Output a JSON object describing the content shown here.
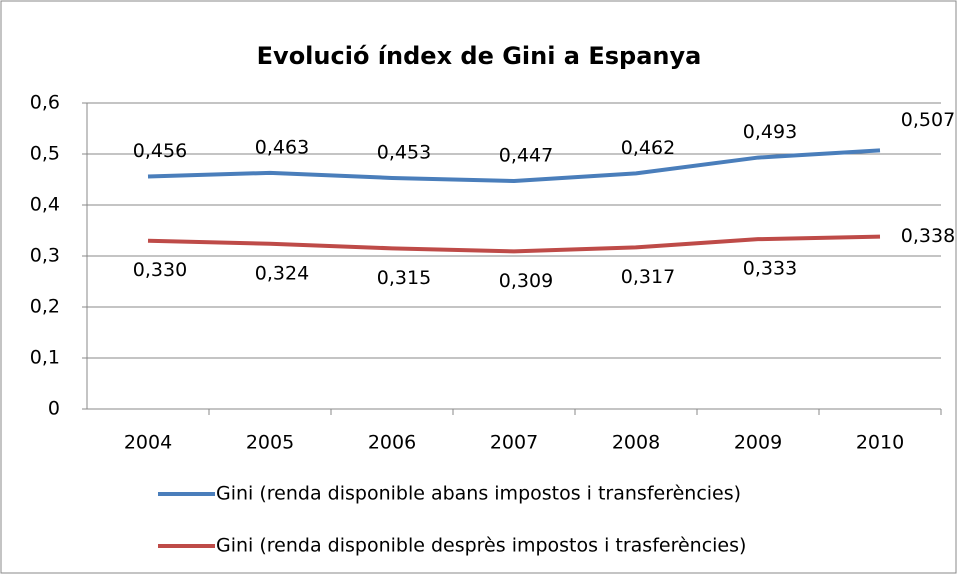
{
  "chart_data": {
    "type": "line",
    "title": "Evolució índex de Gini a Espanya",
    "categories": [
      "2004",
      "2005",
      "2006",
      "2007",
      "2008",
      "2009",
      "2010"
    ],
    "series": [
      {
        "name": "Gini (renda disponible abans impostos i transferències)",
        "color": "#4a7ebb",
        "values": [
          0.456,
          0.463,
          0.453,
          0.447,
          0.462,
          0.493,
          0.507
        ],
        "value_labels": [
          "0,456",
          "0,463",
          "0,453",
          "0,447",
          "0,462",
          "0,493",
          "0,507"
        ]
      },
      {
        "name": "Gini (renda disponible desprès impostos  i trasferències)",
        "color": "#be4b48",
        "values": [
          0.33,
          0.324,
          0.315,
          0.309,
          0.317,
          0.333,
          0.338
        ],
        "value_labels": [
          "0,330",
          "0,324",
          "0,315",
          "0,309",
          "0,317",
          "0,333",
          "0,338"
        ]
      }
    ],
    "ylim": [
      0,
      0.6
    ],
    "yticks": [
      0,
      {
        "value": 0.1,
        "label": "0,1"
      },
      {
        "value": 0.2,
        "label": "0,2"
      },
      {
        "value": 0.3,
        "label": "0,3"
      },
      {
        "value": 0.4,
        "label": "0,4"
      },
      {
        "value": 0.5,
        "label": "0,5"
      },
      {
        "value": 0.6,
        "label": "0,6"
      }
    ],
    "grid": true,
    "legend": "bottom"
  }
}
